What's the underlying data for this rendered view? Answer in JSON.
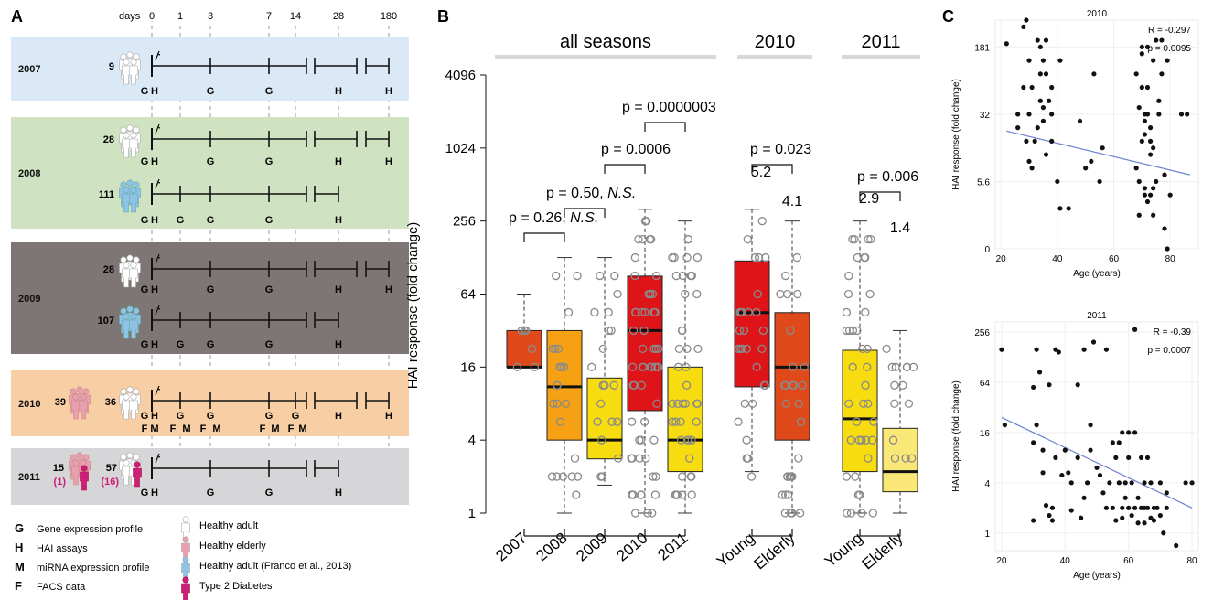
{
  "panel_a": {
    "letter": "A",
    "days_label": "days",
    "day_ticks": [
      {
        "label": "0",
        "day": 0
      },
      {
        "label": "1",
        "day": 1
      },
      {
        "label": "3",
        "day": 3
      },
      {
        "label": "7",
        "day": 7
      },
      {
        "label": "14",
        "day": 14
      },
      {
        "label": "28",
        "day": 28
      },
      {
        "label": "180",
        "day": 180
      }
    ],
    "colors": {
      "2007": "#dbe9f7",
      "2008": "#cfe3c2",
      "2009": "#7e7674",
      "2010": "#f8cfa5",
      "2011": "#d6d5d7"
    },
    "cohorts": [
      {
        "year": "2007",
        "groups": [
          {
            "n": "9",
            "people": "adult",
            "bottom": "G H   .   G   .   G   .   .   H   .   H"
          }
        ]
      },
      {
        "year": "2008",
        "groups": [
          {
            "n": "28",
            "people": "adult"
          },
          {
            "n": "111",
            "people": "franco"
          }
        ]
      },
      {
        "year": "2009",
        "groups": [
          {
            "n": "28",
            "people": "adult"
          },
          {
            "n": "107",
            "people": "franco"
          }
        ]
      },
      {
        "year": "2010",
        "groups": [
          {
            "n": "39",
            "people": "elderly"
          },
          {
            "n": "36",
            "people": "adult"
          }
        ]
      },
      {
        "year": "2011",
        "groups": [
          {
            "n": "15",
            "sub": "(1)",
            "people": "elderly"
          },
          {
            "n": "57",
            "sub": "(16)",
            "people": "adult"
          }
        ]
      }
    ],
    "legend": [
      {
        "key": "G",
        "text": "Gene expression profile"
      },
      {
        "key": "H",
        "text": "HAI assays"
      },
      {
        "key": "M",
        "text": "miRNA expression profile"
      },
      {
        "key": "F",
        "text": "FACS data"
      }
    ],
    "people_legend": [
      {
        "text": "Healthy adult",
        "color": "#ffffff"
      },
      {
        "text": "Healthy elderly",
        "color": "#e8a0ae"
      },
      {
        "text": "Healthy adult (Franco et al., 2013)",
        "color": "#8ec3e6"
      },
      {
        "text": "Type 2 Diabetes",
        "color": "#cc1f7a"
      }
    ]
  },
  "panel_b": {
    "letter": "B",
    "chart_data": {
      "type": "box",
      "ylabel": "HAI response (fold change)",
      "yscale": "log2",
      "yticks": [
        "1",
        "4",
        "16",
        "64",
        "256",
        "1024",
        "4096"
      ],
      "ytick_values": [
        1,
        4,
        16,
        64,
        256,
        1024,
        4096
      ],
      "headers": [
        {
          "text": "all seasons",
          "from": 0,
          "to": 4
        },
        {
          "text": "2010",
          "from": 5,
          "to": 6
        },
        {
          "text": "2011",
          "from": 7,
          "to": 8
        }
      ],
      "categories": [
        "2007",
        "2008",
        "2009",
        "2010",
        "2011",
        "Young",
        "Elderly",
        "Young",
        "Elderly"
      ],
      "boxes": [
        {
          "q1": 16,
          "median": 16,
          "q3": 32,
          "lower": 16,
          "upper": 64,
          "color": "#e04a1a"
        },
        {
          "q1": 4,
          "median": 11,
          "q3": 32,
          "lower": 1,
          "upper": 128,
          "color": "#f5a113"
        },
        {
          "q1": 2.8,
          "median": 4,
          "q3": 13,
          "lower": 1.7,
          "upper": 128,
          "color": "#f7dc10"
        },
        {
          "q1": 7,
          "median": 32,
          "q3": 90,
          "lower": 1,
          "upper": 320,
          "color": "#df1418"
        },
        {
          "q1": 2.2,
          "median": 4,
          "q3": 16,
          "lower": 1,
          "upper": 256,
          "color": "#f7dc10"
        },
        {
          "q1": 11,
          "median": 45,
          "q3": 120,
          "lower": 2.2,
          "upper": 320,
          "color": "#df1418"
        },
        {
          "q1": 4,
          "median": 16,
          "q3": 45,
          "lower": 1,
          "upper": 256,
          "color": "#e04a1a"
        },
        {
          "q1": 2.2,
          "median": 6,
          "q3": 22,
          "lower": 1,
          "upper": 256,
          "color": "#f7dc10"
        },
        {
          "q1": 1.5,
          "median": 2.2,
          "q3": 5,
          "lower": 1,
          "upper": 32,
          "color": "#f9e877"
        }
      ],
      "medians_text": [
        {
          "text": "5.2",
          "box": 5
        },
        {
          "text": "4.1",
          "box": 6
        },
        {
          "text": "2.9",
          "box": 7
        },
        {
          "text": "1.4",
          "box": 8
        }
      ],
      "comparisons": [
        {
          "label": "p = 0.26, ",
          "ns": "N.S.",
          "a": 0,
          "b": 1,
          "y": 200
        },
        {
          "label": "p = 0.50, ",
          "ns": "N.S.",
          "a": 1,
          "b": 2,
          "y": 360
        },
        {
          "label": "p = 0.0006",
          "ns": "",
          "a": 2,
          "b": 3,
          "y": 800
        },
        {
          "label": "p = 0.0000003",
          "ns": "",
          "a": 3,
          "b": 4,
          "y": 1500
        },
        {
          "label": "p = 0.023",
          "ns": "",
          "a": 5,
          "b": 6,
          "y": 800
        },
        {
          "label": "p = 0.006",
          "ns": "",
          "a": 7,
          "b": 8,
          "y": 360
        }
      ]
    }
  },
  "panel_c": {
    "letter": "C",
    "chart_data": [
      {
        "type": "scatter",
        "title": "2010",
        "xlabel": "Age (years)",
        "ylabel": "HAI response (fold change)",
        "xticks": [
          20,
          40,
          60,
          80
        ],
        "yticks": [
          "0",
          "5.6",
          "32",
          "181"
        ],
        "ytick_values": [
          0,
          1,
          2,
          3
        ],
        "stat_r": "R = -0.297",
        "stat_p": "p = 0.0095",
        "fit": {
          "x0": 22,
          "y0": 1.75,
          "x1": 87,
          "y1": 1.1
        },
        "points": [
          [
            22,
            3.05
          ],
          [
            26,
            2.0
          ],
          [
            26,
            1.8
          ],
          [
            28,
            2.4
          ],
          [
            28,
            3.3
          ],
          [
            29,
            3.4
          ],
          [
            29,
            1.6
          ],
          [
            30,
            2.0
          ],
          [
            30,
            1.3
          ],
          [
            30,
            2.8
          ],
          [
            31,
            1.2
          ],
          [
            31,
            2.4
          ],
          [
            32,
            1.6
          ],
          [
            33,
            1.8
          ],
          [
            33,
            3.1
          ],
          [
            34,
            2.6
          ],
          [
            34,
            3.0
          ],
          [
            34,
            2.2
          ],
          [
            35,
            1.9
          ],
          [
            35,
            2.1
          ],
          [
            35,
            2.8
          ],
          [
            36,
            1.4
          ],
          [
            36,
            2.6
          ],
          [
            36,
            3.1
          ],
          [
            37,
            2.2
          ],
          [
            38,
            2.0
          ],
          [
            38,
            1.6
          ],
          [
            38,
            2.4
          ],
          [
            40,
            1.0
          ],
          [
            41,
            0.6
          ],
          [
            41,
            2.8
          ],
          [
            44,
            0.6
          ],
          [
            48,
            1.9
          ],
          [
            50,
            1.2
          ],
          [
            52,
            1.3
          ],
          [
            53,
            2.6
          ],
          [
            55,
            1.0
          ],
          [
            56,
            1.5
          ],
          [
            68,
            2.6
          ],
          [
            68,
            1.2
          ],
          [
            69,
            2.1
          ],
          [
            69,
            1.0
          ],
          [
            69,
            0.5
          ],
          [
            70,
            2.9
          ],
          [
            70,
            2.4
          ],
          [
            70,
            1.6
          ],
          [
            70,
            3.0
          ],
          [
            71,
            1.9
          ],
          [
            71,
            2.0
          ],
          [
            71,
            1.7
          ],
          [
            71,
            0.9
          ],
          [
            71,
            0.8
          ],
          [
            72,
            0.7
          ],
          [
            72,
            2.4
          ],
          [
            72,
            3.0
          ],
          [
            72,
            2.0
          ],
          [
            73,
            1.4
          ],
          [
            73,
            1.6
          ],
          [
            73,
            1.8
          ],
          [
            73,
            0.8
          ],
          [
            74,
            2.8
          ],
          [
            74,
            1.5
          ],
          [
            74,
            0.5
          ],
          [
            74,
            0.9
          ],
          [
            75,
            3.1
          ],
          [
            75,
            1.0
          ],
          [
            76,
            2.2
          ],
          [
            76,
            2.0
          ],
          [
            77,
            2.6
          ],
          [
            77,
            3.1
          ],
          [
            78,
            0.3
          ],
          [
            78,
            1.1
          ],
          [
            79,
            2.8
          ],
          [
            79,
            0.0
          ],
          [
            80,
            0.8
          ],
          [
            84,
            2.0
          ],
          [
            86,
            2.0
          ]
        ]
      },
      {
        "type": "scatter",
        "title": "2011",
        "xlabel": "Age (years)",
        "ylabel": "HAI response (fold change)",
        "xticks": [
          20,
          40,
          60,
          80
        ],
        "yticks": [
          "1",
          "4",
          "16",
          "64",
          "256"
        ],
        "ytick_values": [
          0,
          2,
          4,
          6,
          8
        ],
        "stat_r": "R = -0.39",
        "stat_p": "p = 0.0007",
        "fit": {
          "x0": 20,
          "y0": 4.6,
          "x1": 80,
          "y1": 1.0
        },
        "points": [
          [
            20,
            7.3
          ],
          [
            21,
            4.3
          ],
          [
            30,
            0.5
          ],
          [
            30,
            5.8
          ],
          [
            30,
            3.6
          ],
          [
            31,
            7.3
          ],
          [
            31,
            4.3
          ],
          [
            32,
            6.4
          ],
          [
            33,
            3.3
          ],
          [
            33,
            2.4
          ],
          [
            34,
            1.1
          ],
          [
            35,
            0.7
          ],
          [
            35,
            5.9
          ],
          [
            36,
            0.5
          ],
          [
            36,
            1.0
          ],
          [
            37,
            7.3
          ],
          [
            37,
            3.0
          ],
          [
            38,
            7.2
          ],
          [
            39,
            2.3
          ],
          [
            40,
            3.3
          ],
          [
            41,
            2.4
          ],
          [
            42,
            0.9
          ],
          [
            42,
            2.0
          ],
          [
            44,
            3.0
          ],
          [
            44,
            5.9
          ],
          [
            45,
            0.6
          ],
          [
            46,
            7.3
          ],
          [
            46,
            1.4
          ],
          [
            47,
            2.0
          ],
          [
            48,
            3.3
          ],
          [
            48,
            4.3
          ],
          [
            49,
            7.6
          ],
          [
            50,
            2.6
          ],
          [
            51,
            2.3
          ],
          [
            52,
            1.6
          ],
          [
            53,
            1.0
          ],
          [
            53,
            7.3
          ],
          [
            54,
            2.0
          ],
          [
            55,
            1.0
          ],
          [
            55,
            3.6
          ],
          [
            56,
            3.0
          ],
          [
            56,
            0.5
          ],
          [
            57,
            3.6
          ],
          [
            57,
            2.0
          ],
          [
            58,
            4.0
          ],
          [
            58,
            1.0
          ],
          [
            58,
            0.6
          ],
          [
            59,
            1.4
          ],
          [
            59,
            2.0
          ],
          [
            60,
            1.0
          ],
          [
            60,
            3.0
          ],
          [
            60,
            4.0
          ],
          [
            61,
            0.7
          ],
          [
            61,
            2.0
          ],
          [
            62,
            1.0
          ],
          [
            62,
            4.0
          ],
          [
            62,
            8.1
          ],
          [
            63,
            0.4
          ],
          [
            63,
            1.4
          ],
          [
            64,
            1.0
          ],
          [
            64,
            3.0
          ],
          [
            65,
            1.0
          ],
          [
            65,
            2.0
          ],
          [
            65,
            0.4
          ],
          [
            66,
            3.0
          ],
          [
            66,
            1.0
          ],
          [
            67,
            0.6
          ],
          [
            67,
            2.0
          ],
          [
            68,
            1.0
          ],
          [
            68,
            0.5
          ],
          [
            69,
            1.0
          ],
          [
            70,
            2.0
          ],
          [
            70,
            0.7
          ],
          [
            71,
            0.0
          ],
          [
            72,
            1.6
          ],
          [
            72,
            1.0
          ],
          [
            75,
            -0.5
          ],
          [
            78,
            2.0
          ],
          [
            80,
            2.0
          ]
        ]
      }
    ]
  }
}
